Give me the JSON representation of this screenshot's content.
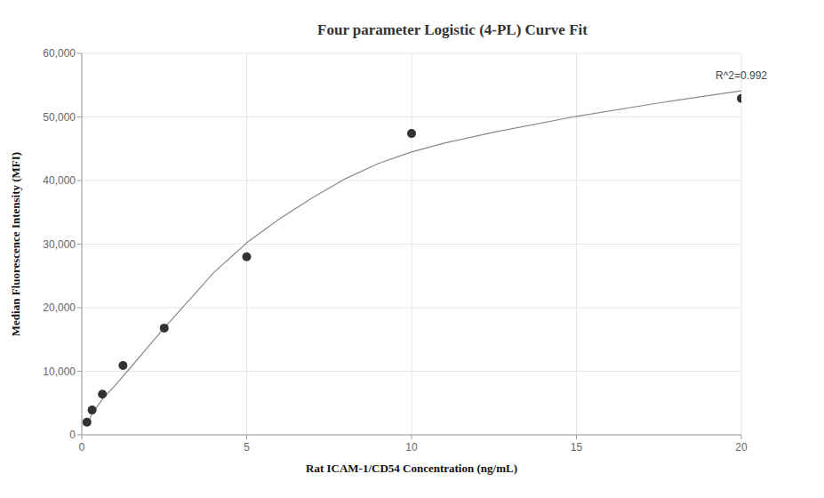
{
  "chart_data": {
    "type": "scatter",
    "title": "Four parameter Logistic (4-PL) Curve Fit",
    "x_label": "Rat ICAM-1/CD54 Concentration (ng/mL)",
    "y_label": "Median Fluorescence Intensity (MFI)",
    "annotation": {
      "text": "R^2=0.992",
      "x": 20,
      "y": 56000
    },
    "xlim": [
      0,
      20
    ],
    "ylim": [
      0,
      60000
    ],
    "xticks": [
      0,
      5,
      10,
      15,
      20
    ],
    "yticks": [
      0,
      {
        "value": 10000,
        "label": "10,000"
      },
      {
        "value": 20000,
        "label": "20,000"
      },
      {
        "value": 30000,
        "label": "30,000"
      },
      {
        "value": 40000,
        "label": "40,000"
      },
      {
        "value": 50000,
        "label": "50,000"
      },
      {
        "value": 60000,
        "label": "60,000"
      }
    ],
    "grid": true,
    "series": [
      {
        "type": "scatter",
        "marker": "circle",
        "color": "#333333",
        "x": [
          0.156,
          0.3125,
          0.625,
          1.25,
          2.5,
          5,
          10,
          20
        ],
        "values": [
          2000,
          3900,
          6400,
          10900,
          16800,
          28000,
          47400,
          52900
        ]
      },
      {
        "type": "line",
        "line_style": "solid",
        "color": "#888888",
        "x": [
          0.156,
          0.3125,
          0.625,
          1,
          1.5,
          2,
          2.5,
          3,
          4,
          5,
          6,
          7,
          8,
          9,
          10,
          11,
          12.5,
          15,
          17.5,
          20
        ],
        "values": [
          1700,
          3300,
          5600,
          7700,
          10700,
          13800,
          16800,
          19700,
          25500,
          30200,
          34000,
          37300,
          40300,
          42700,
          44500,
          45900,
          47600,
          50100,
          52200,
          54100
        ]
      }
    ]
  }
}
